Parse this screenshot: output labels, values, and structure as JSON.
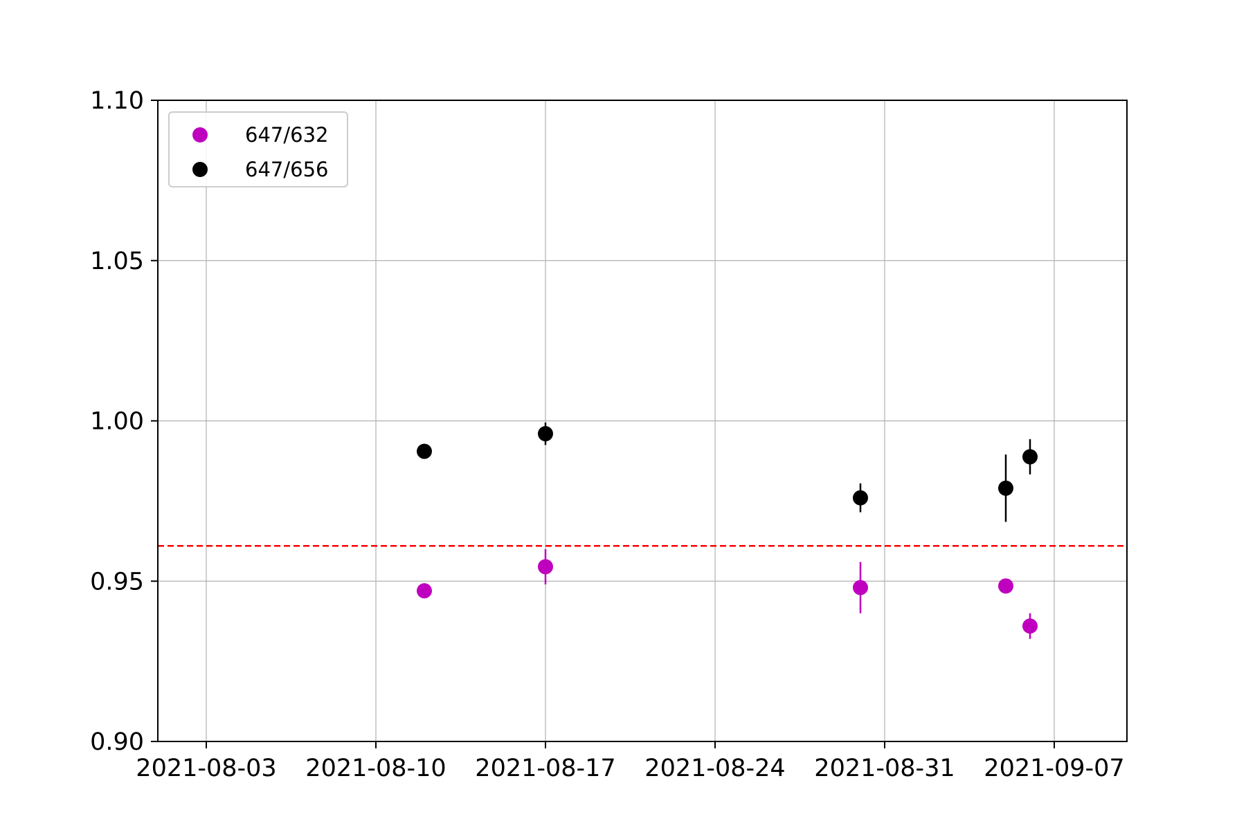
{
  "chart_data": {
    "type": "scatter",
    "title": "",
    "xlabel": "",
    "ylabel": "",
    "x_axis_type": "date",
    "xlim": [
      "2021-08-01",
      "2021-09-10"
    ],
    "ylim": [
      0.9,
      1.1
    ],
    "x_ticks": [
      "2021-08-03",
      "2021-08-10",
      "2021-08-17",
      "2021-08-24",
      "2021-08-31",
      "2021-09-07"
    ],
    "y_ticks": [
      "0.90",
      "0.95",
      "1.00",
      "1.05",
      "1.10"
    ],
    "grid": true,
    "legend_position": "top-left",
    "reference_line": {
      "y": 0.961,
      "color": "#ff0000",
      "style": "dashed"
    },
    "series": [
      {
        "name": "647/632",
        "color": "#bf00bf",
        "points": [
          {
            "x": "2021-08-12",
            "y": 0.947,
            "err": 0.0
          },
          {
            "x": "2021-08-17",
            "y": 0.9545,
            "err": 0.0055
          },
          {
            "x": "2021-08-30",
            "y": 0.948,
            "err": 0.008
          },
          {
            "x": "2021-09-05",
            "y": 0.9485,
            "err": 0.0
          },
          {
            "x": "2021-09-06",
            "y": 0.936,
            "err": 0.004
          }
        ]
      },
      {
        "name": "647/656",
        "color": "#000000",
        "points": [
          {
            "x": "2021-08-12",
            "y": 0.9905,
            "err": 0.0
          },
          {
            "x": "2021-08-17",
            "y": 0.996,
            "err": 0.0035
          },
          {
            "x": "2021-08-30",
            "y": 0.976,
            "err": 0.0045
          },
          {
            "x": "2021-09-05",
            "y": 0.979,
            "err": 0.0105
          },
          {
            "x": "2021-09-06",
            "y": 0.9888,
            "err": 0.0055
          }
        ]
      }
    ]
  }
}
